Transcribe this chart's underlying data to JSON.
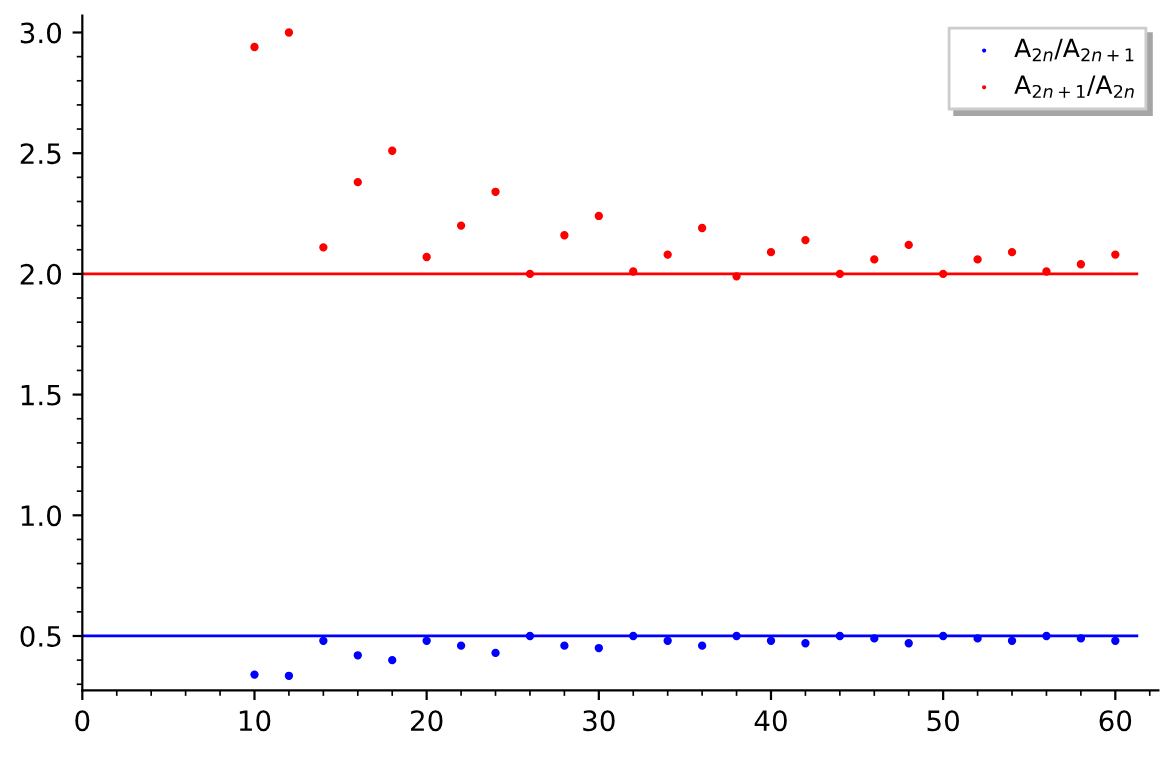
{
  "chart_data": {
    "type": "scatter",
    "x": [
      10,
      12,
      14,
      16,
      18,
      20,
      22,
      24,
      26,
      28,
      30,
      32,
      34,
      36,
      38,
      40,
      42,
      44,
      46,
      48,
      50,
      52,
      54,
      56,
      58,
      60
    ],
    "series": [
      {
        "name": "A$_{2n}$/A$_{2n+1}$",
        "color": "#0000ff",
        "values": [
          0.34,
          0.335,
          0.48,
          0.42,
          0.4,
          0.48,
          0.46,
          0.43,
          0.5,
          0.46,
          0.45,
          0.5,
          0.48,
          0.46,
          0.5,
          0.48,
          0.47,
          0.5,
          0.49,
          0.47,
          0.5,
          0.49,
          0.48,
          0.5,
          0.49,
          0.48
        ]
      },
      {
        "name": "A$_{2n+1}$/A$_{2n}$",
        "color": "#ff0000",
        "values": [
          2.94,
          3.0,
          2.11,
          2.38,
          2.51,
          2.07,
          2.2,
          2.34,
          2.0,
          2.16,
          2.24,
          2.01,
          2.08,
          2.19,
          1.99,
          2.09,
          2.14,
          2.0,
          2.06,
          2.12,
          2.0,
          2.06,
          2.09,
          2.01,
          2.04,
          2.08
        ]
      }
    ],
    "ref_lines": [
      {
        "axis": "y",
        "value": 0.5,
        "color": "#0000ff"
      },
      {
        "axis": "y",
        "value": 2.0,
        "color": "#ff0000"
      }
    ],
    "xlim": [
      0,
      62.5
    ],
    "ylim": [
      0.275,
      3.07
    ],
    "xticks": [
      0,
      10,
      20,
      30,
      40,
      50,
      60
    ],
    "yticks": [
      {
        "value": 0.5,
        "label": "0.5"
      },
      {
        "value": 1.0,
        "label": "1.0"
      },
      {
        "value": 1.5,
        "label": "1.5"
      },
      {
        "value": 2.0,
        "label": "2.0"
      },
      {
        "value": 2.5,
        "label": "2.5"
      },
      {
        "value": 3.0,
        "label": "3.0"
      }
    ],
    "marker": "circle",
    "legend": "top right",
    "grid": false
  }
}
